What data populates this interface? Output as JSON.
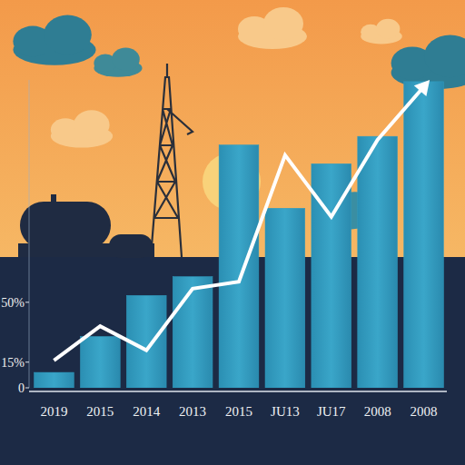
{
  "chart_data": {
    "type": "bar",
    "categories": [
      "2019",
      "2015",
      "2014",
      "2013",
      "2015",
      "JU13",
      "JU17",
      "2008",
      "2008"
    ],
    "series": [
      {
        "type": "bar",
        "color": "#2e9cc0",
        "values": [
          9,
          30,
          54,
          65,
          142,
          105,
          131,
          147,
          179
        ]
      },
      {
        "type": "line",
        "color": "#ffffff",
        "values": [
          16,
          36,
          22,
          58,
          62,
          136,
          100,
          145,
          176
        ]
      }
    ],
    "ylim": [
      0,
      180
    ],
    "yticks": [
      0,
      {
        "value": 15,
        "label": "15%"
      },
      {
        "value": 50,
        "label": "50%"
      }
    ],
    "grid": false
  }
}
